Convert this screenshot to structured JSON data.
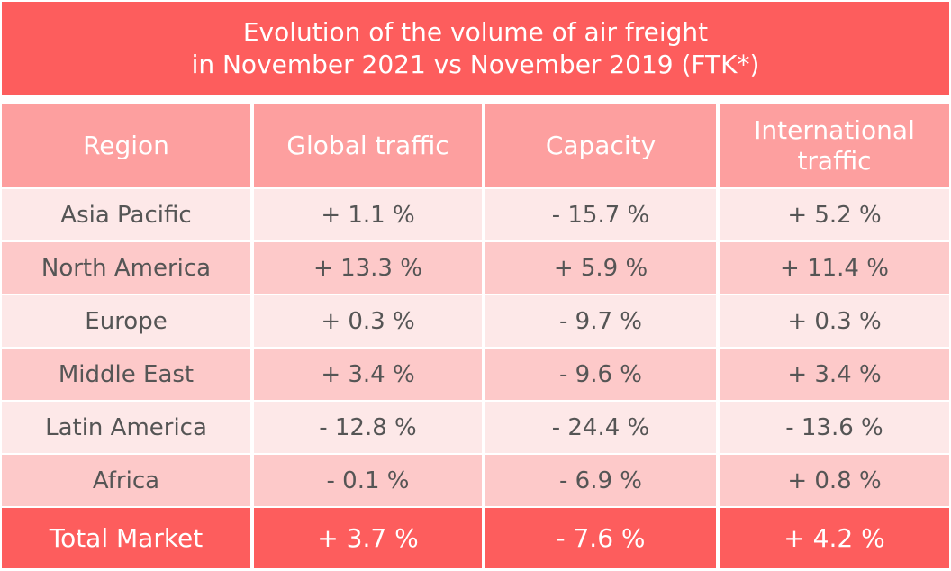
{
  "title_line1": "Evolution of the volume of air freight",
  "title_line2": "in November 2021 vs November 2019 (FTK*)",
  "colors": {
    "title_bg": "#fd5d5d",
    "header_bg": "#fd9f9f",
    "row_light": "#fde8e8",
    "row_mid": "#fdc9c9",
    "total_bg": "#fd5d5d",
    "body_text": "#555555",
    "header_text": "#ffffff"
  },
  "chart_data": {
    "type": "table",
    "columns": [
      "Region",
      "Global traffic",
      "Capacity",
      "International traffic"
    ],
    "header_lines": [
      [
        "Region"
      ],
      [
        "Global traffic"
      ],
      [
        "Capacity"
      ],
      [
        "International",
        "traffic"
      ]
    ],
    "rows": [
      [
        "Asia Pacific",
        "+ 1.1 %",
        "- 15.7 %",
        "+ 5.2 %"
      ],
      [
        "North America",
        "+ 13.3 %",
        "+ 5.9 %",
        "+ 11.4 %"
      ],
      [
        "Europe",
        "+ 0.3 %",
        "- 9.7 %",
        "+ 0.3 %"
      ],
      [
        "Middle East",
        "+ 3.4 %",
        "- 9.6 %",
        "+ 3.4 %"
      ],
      [
        "Latin America",
        "- 12.8 %",
        "- 24.4 %",
        "- 13.6 %"
      ],
      [
        "Africa",
        "- 0.1 %",
        "- 6.9 %",
        "+ 0.8 %"
      ]
    ],
    "total": [
      "Total Market",
      "+ 3.7 %",
      "- 7.6 %",
      "+ 4.2 %"
    ]
  }
}
